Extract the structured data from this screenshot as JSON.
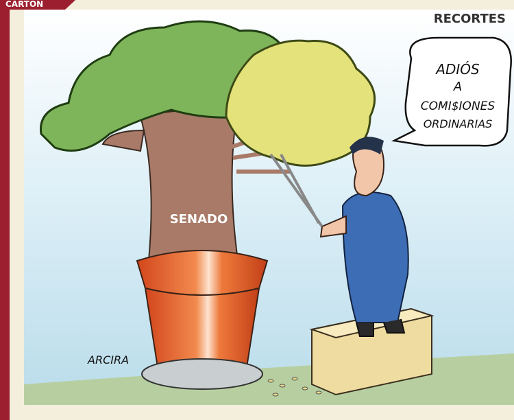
{
  "header": {
    "label": "CARTÓN"
  },
  "cartoon": {
    "caption": "RECORTES",
    "speech": [
      "ADIÓS",
      "A",
      "COMI$IONES",
      "ORDINARIAS"
    ],
    "trunk_label": "SENADO",
    "signature": "ARCIRA"
  }
}
